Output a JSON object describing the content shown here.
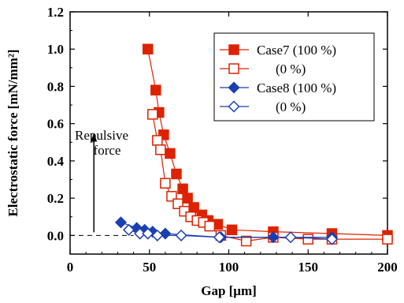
{
  "chart_data": {
    "type": "line",
    "xlabel": "Gap [μm]",
    "ylabel": "Electrostatic force [mN/mm²]",
    "xlim": [
      0,
      200
    ],
    "ylim": [
      -0.1,
      1.2
    ],
    "xticks": [
      "0",
      "50",
      "100",
      "150",
      "200"
    ],
    "yticks": [
      "0.0",
      "0.2",
      "0.4",
      "0.6",
      "0.8",
      "1.0",
      "1.2"
    ],
    "xtick_values": [
      0,
      50,
      100,
      150,
      200
    ],
    "ytick_values": [
      0.0,
      0.2,
      0.4,
      0.6,
      0.8,
      1.0,
      1.2
    ],
    "grid": false,
    "legend_position": "top-right",
    "annotation": {
      "line1": "Repulsive",
      "line2": "force",
      "arrow_x": 15,
      "arrow_y_from": 0.0,
      "arrow_y_to": 0.55
    },
    "series": [
      {
        "name": "Case7 (100 %)",
        "color": "#dd2200",
        "marker": "square-filled",
        "x": [
          49,
          54,
          56,
          59,
          63,
          67,
          71,
          74,
          78,
          83,
          87,
          93,
          102,
          128,
          165,
          200
        ],
        "y": [
          1.0,
          0.78,
          0.66,
          0.54,
          0.44,
          0.33,
          0.25,
          0.2,
          0.15,
          0.11,
          0.08,
          0.06,
          0.03,
          0.02,
          0.01,
          0.0
        ]
      },
      {
        "name": "(0 %)",
        "color": "#dd2200",
        "marker": "square-open",
        "x": [
          52,
          55,
          57,
          60,
          64,
          68,
          72,
          76,
          80,
          84,
          88,
          95,
          111,
          128,
          150,
          165,
          200
        ],
        "y": [
          0.65,
          0.51,
          0.46,
          0.28,
          0.21,
          0.17,
          0.13,
          0.1,
          0.08,
          0.07,
          0.05,
          0.0,
          -0.03,
          -0.01,
          -0.02,
          -0.02,
          -0.02
        ]
      },
      {
        "name": "Case8 (100 %)",
        "color": "#1a3fb0",
        "marker": "diamond-filled",
        "x": [
          32,
          42,
          47,
          52,
          60,
          95,
          128,
          165
        ],
        "y": [
          0.07,
          0.04,
          0.03,
          0.02,
          0.01,
          -0.01,
          -0.01,
          -0.01
        ]
      },
      {
        "name": "(0 %)",
        "color": "#1a3fb0",
        "marker": "diamond-open",
        "x": [
          37,
          44,
          49,
          55,
          70,
          94,
          139,
          165
        ],
        "y": [
          0.03,
          0.01,
          0.01,
          0.0,
          0.0,
          -0.01,
          -0.01,
          -0.02
        ]
      }
    ]
  }
}
